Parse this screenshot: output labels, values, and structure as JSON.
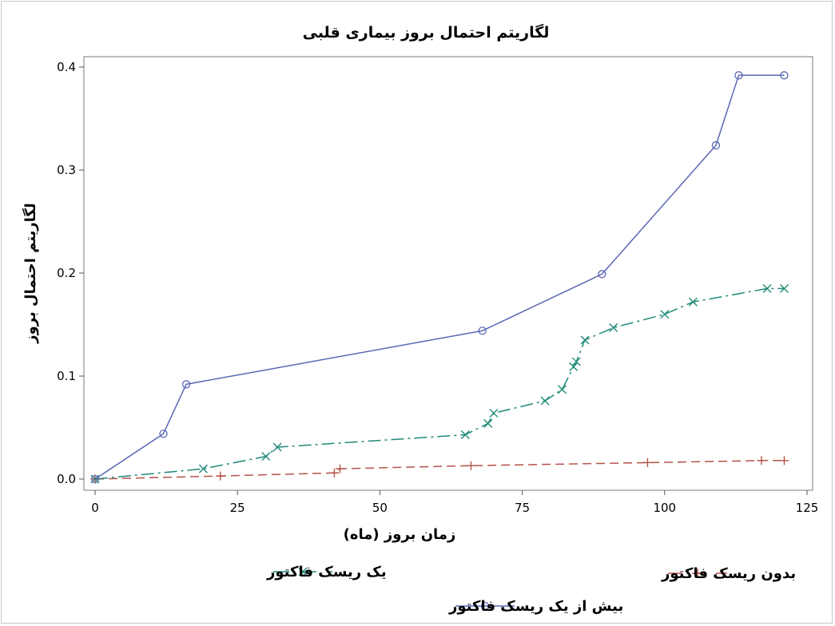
{
  "chart_data": {
    "type": "line",
    "title": "لگاریتم احتمال بروز بیماری قلبی",
    "xlabel": "زمان بروز (ماه)",
    "ylabel": "لگاریتم احتمال بروز",
    "xlim": [
      -2,
      127
    ],
    "ylim": [
      -0.01,
      0.41
    ],
    "xticks": [
      0,
      25,
      50,
      75,
      100,
      125
    ],
    "yticks": [
      0.0,
      0.1,
      0.2,
      0.3,
      0.4
    ],
    "xtick_labels": [
      "0",
      "25",
      "50",
      "75",
      "100",
      "125"
    ],
    "ytick_labels": [
      "0.0",
      "0.1",
      "0.2",
      "0.3",
      "0.4"
    ],
    "grid": false,
    "legend_position": "bottom",
    "series": [
      {
        "name": "بیش از یک ریسک فاکتور",
        "color": "#5a67b3",
        "marker": "circle",
        "dash": "solid",
        "points": [
          [
            0,
            0.0
          ],
          [
            12,
            0.044
          ],
          [
            16,
            0.092
          ],
          [
            68,
            0.144
          ],
          [
            89,
            0.199
          ],
          [
            109,
            0.324
          ],
          [
            113,
            0.392
          ],
          [
            121,
            0.392
          ]
        ]
      },
      {
        "name": "یک ریسک فاکتور",
        "color": "#1f8a78",
        "marker": "x",
        "dash": "dashdot",
        "points": [
          [
            0,
            0.0
          ],
          [
            19,
            0.01
          ],
          [
            30,
            0.022
          ],
          [
            32,
            0.031
          ],
          [
            65,
            0.043
          ],
          [
            69,
            0.054
          ],
          [
            70,
            0.064
          ],
          [
            79,
            0.076
          ],
          [
            82,
            0.087
          ],
          [
            84,
            0.109
          ],
          [
            84.5,
            0.114
          ],
          [
            86,
            0.135
          ],
          [
            91,
            0.147
          ],
          [
            100,
            0.16
          ],
          [
            105,
            0.172
          ],
          [
            118,
            0.185
          ],
          [
            121,
            0.185
          ]
        ]
      },
      {
        "name": "بدون ریسک فاکتور",
        "color": "#b5524a",
        "marker": "plus",
        "dash": "dash",
        "points": [
          [
            0,
            0.0
          ],
          [
            22,
            0.003
          ],
          [
            42,
            0.006
          ],
          [
            43,
            0.01
          ],
          [
            66,
            0.013
          ],
          [
            97,
            0.016
          ],
          [
            117,
            0.018
          ],
          [
            121,
            0.018
          ]
        ]
      }
    ]
  }
}
